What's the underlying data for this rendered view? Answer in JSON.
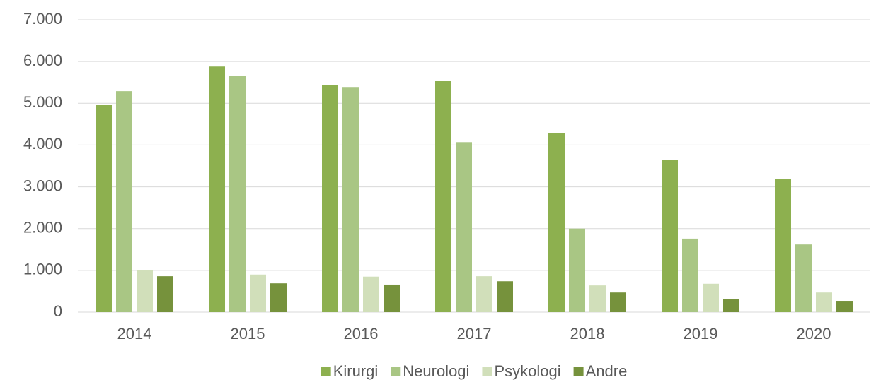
{
  "chart_data": {
    "type": "bar",
    "categories": [
      "2014",
      "2015",
      "2016",
      "2017",
      "2018",
      "2019",
      "2020"
    ],
    "series": [
      {
        "name": "Kirurgi",
        "color": "#8db04f",
        "values": [
          4970,
          5880,
          5430,
          5530,
          4280,
          3650,
          3180
        ]
      },
      {
        "name": "Neurologi",
        "color": "#a9c684",
        "values": [
          5290,
          5650,
          5390,
          4070,
          2000,
          1760,
          1620
        ]
      },
      {
        "name": "Psykologi",
        "color": "#d1dfba",
        "values": [
          1000,
          900,
          850,
          860,
          640,
          680,
          470
        ]
      },
      {
        "name": "Andre",
        "color": "#76923c",
        "values": [
          860,
          690,
          660,
          740,
          470,
          320,
          270
        ]
      }
    ],
    "ylim": [
      0,
      7000
    ],
    "yticks": [
      0,
      {
        "value": 1000,
        "label": "1.000"
      },
      {
        "value": 2000,
        "label": "2.000"
      },
      {
        "value": 3000,
        "label": "3.000"
      },
      {
        "value": 4000,
        "label": "4.000"
      },
      {
        "value": 5000,
        "label": "5.000"
      },
      {
        "value": 6000,
        "label": "6.000"
      },
      {
        "value": 7000,
        "label": "7.000"
      }
    ],
    "grid": true,
    "legend": "bottom"
  }
}
